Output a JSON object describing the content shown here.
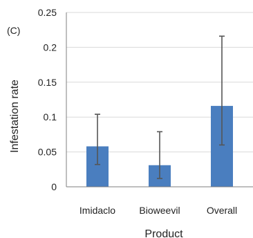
{
  "chart_data": {
    "type": "bar",
    "panel_label": "(C)",
    "categories": [
      "Imidaclo",
      "Bioweevil",
      "Overall"
    ],
    "values": [
      0.058,
      0.031,
      0.116
    ],
    "error_low": [
      0.032,
      0.012,
      0.06
    ],
    "error_high": [
      0.104,
      0.079,
      0.216
    ],
    "xlabel": "Product",
    "ylabel": "Infestation rate",
    "ylim": [
      0,
      0.25
    ],
    "yticks": [
      0,
      0.05,
      0.1,
      0.15,
      0.2,
      0.25
    ],
    "ytick_labels": [
      "0",
      "0.05",
      "0.1",
      "0.15",
      "0.2",
      "0.25"
    ],
    "grid": "horizontal",
    "colors": {
      "bar": "#4a7ebf",
      "error_bar": "#555555",
      "grid": "#d9d9d9",
      "axis": "#7f7f7f"
    }
  }
}
